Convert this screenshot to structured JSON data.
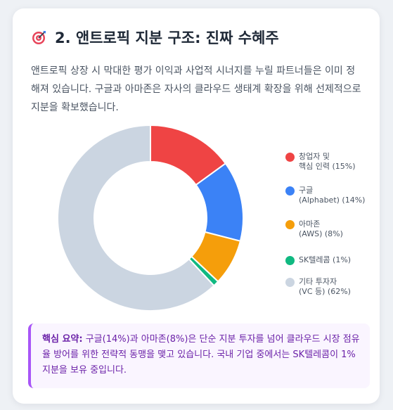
{
  "title": {
    "icon": "direct-hit-target-icon",
    "text": "2. 앤트로픽 지분 구조: 진짜 수혜주"
  },
  "description": "앤트로픽 상장 시 막대한 평가 이익과 사업적 시너지를 누릴 파트너들은 이미 정해져 있습니다. 구글과 아마존은 자사의 클라우드 생태계 확장을 위해 선제적으로 지분을 확보했습니다.",
  "chart_data": {
    "type": "pie",
    "variant": "doughnut",
    "legend_position": "right",
    "series": [
      {
        "label_line1": "창업자 및",
        "label_line2": "핵심 인력 (15%)",
        "value": 15,
        "color": "#ef4444"
      },
      {
        "label_line1": "구글",
        "label_line2": "(Alphabet) (14%)",
        "value": 14,
        "color": "#3b82f6"
      },
      {
        "label_line1": "아마존",
        "label_line2": "(AWS) (8%)",
        "value": 8,
        "color": "#f59e0b"
      },
      {
        "label_line1": "SK텔레콤 (1%)",
        "label_line2": "",
        "value": 1,
        "color": "#10b981"
      },
      {
        "label_line1": "기타 투자자",
        "label_line2": "(VC 등) (62%)",
        "value": 62,
        "color": "#cbd5e1"
      }
    ]
  },
  "summary": {
    "label": "핵심 요약:",
    "text": "구글(14%)과 아마존(8%)은 단순 지분 투자를 넘어 클라우드 시장 점유율 방어를 위한 전략적 동맹을 맺고 있습니다. 국내 기업 중에서는 SK텔레콤이 1% 지분을 보유 중입니다.",
    "accent_color": "#a855f7"
  }
}
